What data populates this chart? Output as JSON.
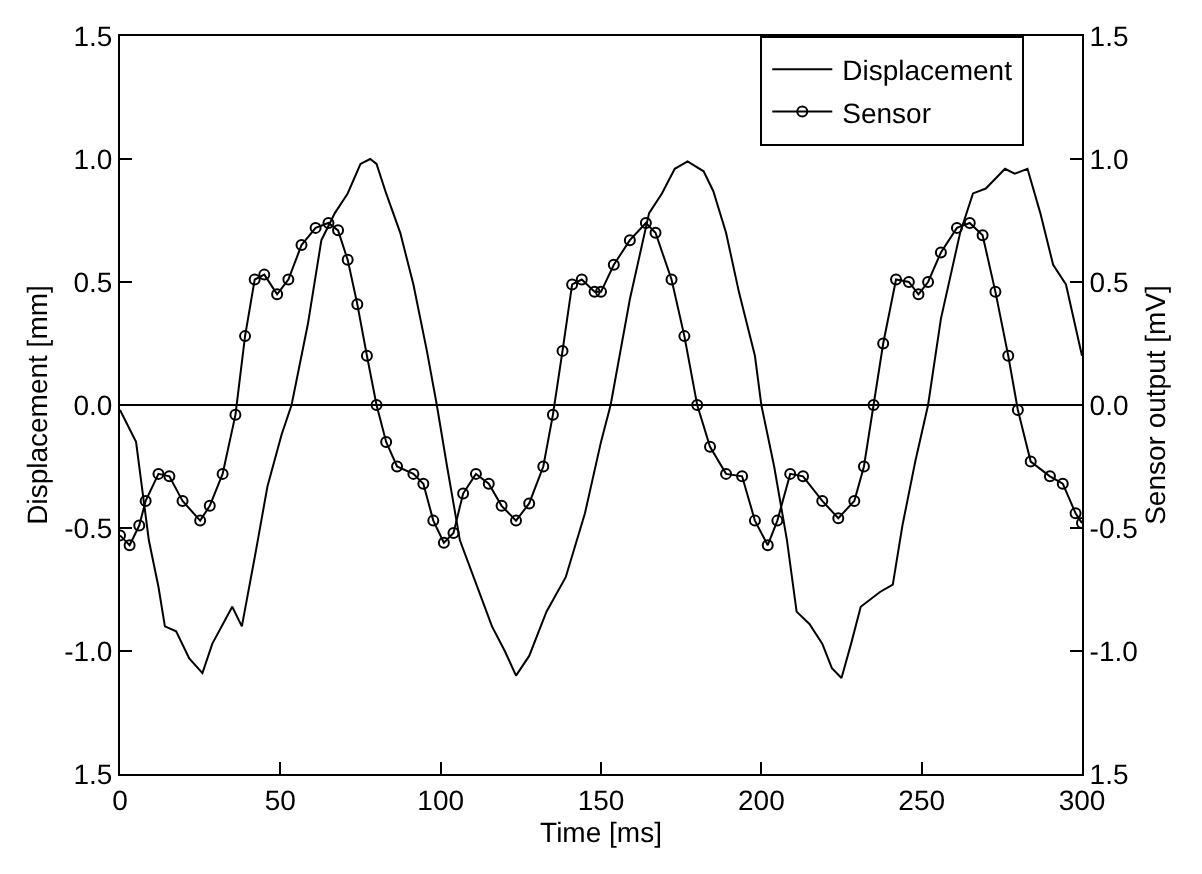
{
  "chart_data": {
    "type": "line",
    "xlabel": "Time [ms]",
    "ylabel": "Displacement [mm]",
    "y2label": "Sensor output [mV]",
    "xlim": [
      0,
      300
    ],
    "xticks": [
      0,
      50,
      100,
      150,
      200,
      250,
      300
    ],
    "ylim": [
      -1.5,
      1.5
    ],
    "yticks": [
      {
        "value": -1.5,
        "label": "1.5"
      },
      {
        "value": -1.0,
        "label": "-1.0"
      },
      {
        "value": -0.5,
        "label": "-0.5"
      },
      {
        "value": 0,
        "label": "0.0"
      },
      {
        "value": 0.5,
        "label": "0.5"
      },
      {
        "value": 1.0,
        "label": "1.0"
      },
      {
        "value": 1.5,
        "label": "1.5"
      }
    ],
    "y2lim": [
      -1.5,
      1.5
    ],
    "y2ticks": [
      {
        "value": -1.5,
        "label": "1.5"
      },
      {
        "value": -1.0,
        "label": "-1.0"
      },
      {
        "value": -0.5,
        "label": "-0.5"
      },
      {
        "value": 0,
        "label": "0.0"
      },
      {
        "value": 0.5,
        "label": "0.5"
      },
      {
        "value": 1.0,
        "label": "1.0"
      },
      {
        "value": 1.5,
        "label": "1.5"
      }
    ],
    "ref_lines": [
      {
        "axis": "y",
        "value": 0,
        "color": "#000000"
      }
    ],
    "grid": false,
    "legend": "top right",
    "series": [
      {
        "name": "Displacement",
        "color": "#000000",
        "marker": "none",
        "x": [
          0,
          5,
          9,
          12,
          14,
          17.5,
          21.6,
          25.7,
          28.8,
          35,
          38,
          42,
          46,
          50.4,
          53.5,
          58.6,
          62.8,
          67,
          71,
          75,
          78,
          80,
          83,
          87.4,
          91.5,
          95.7,
          98.8,
          102,
          106,
          112,
          116,
          120,
          123.5,
          127.6,
          133,
          139,
          145,
          150,
          153,
          159,
          165,
          169,
          173,
          177,
          182,
          185,
          189,
          193,
          198,
          200,
          204,
          208,
          211,
          215,
          219,
          222,
          225,
          228,
          231,
          237,
          241,
          244,
          248,
          252,
          256,
          262,
          266,
          270,
          276,
          279,
          283,
          287,
          291,
          295,
          300
        ],
        "values": [
          -0.02,
          -0.15,
          -0.55,
          -0.74,
          -0.9,
          -0.92,
          -1.03,
          -1.09,
          -0.97,
          -0.82,
          -0.9,
          -0.62,
          -0.33,
          -0.12,
          0,
          0.33,
          0.67,
          0.78,
          0.86,
          0.98,
          1.0,
          0.98,
          0.86,
          0.7,
          0.49,
          0.22,
          0,
          -0.25,
          -0.55,
          -0.76,
          -0.9,
          -1.0,
          -1.1,
          -1.02,
          -0.84,
          -0.7,
          -0.44,
          -0.15,
          0,
          0.43,
          0.78,
          0.86,
          0.96,
          0.99,
          0.95,
          0.87,
          0.7,
          0.46,
          0.2,
          0,
          -0.25,
          -0.55,
          -0.84,
          -0.89,
          -0.97,
          -1.07,
          -1.11,
          -0.97,
          -0.82,
          -0.76,
          -0.73,
          -0.49,
          -0.23,
          0,
          0.35,
          0.7,
          0.86,
          0.88,
          0.96,
          0.94,
          0.96,
          0.78,
          0.57,
          0.49,
          0.2
        ]
      },
      {
        "name": "Sensor",
        "color": "#000000",
        "marker": "circle",
        "axis": "y2",
        "x": [
          0,
          3,
          6,
          8,
          12,
          15.4,
          19.5,
          25,
          28,
          32,
          36,
          39,
          42,
          45,
          49,
          52.5,
          56.6,
          61,
          65,
          68,
          71,
          74,
          77,
          80,
          83,
          86.4,
          91.5,
          94.6,
          97.7,
          101,
          104,
          107,
          111,
          115,
          119,
          123.5,
          127.6,
          132,
          135,
          138,
          141,
          144,
          148,
          150,
          154,
          159,
          164,
          167,
          172,
          176,
          180,
          184,
          189,
          194,
          198,
          202,
          205,
          209,
          213,
          219,
          224,
          229,
          232,
          235,
          238,
          242,
          246,
          249,
          252,
          256,
          261,
          265,
          269,
          273,
          277,
          280,
          284,
          290,
          294,
          298,
          300
        ],
        "values": [
          -0.53,
          -0.57,
          -0.49,
          -0.39,
          -0.28,
          -0.29,
          -0.39,
          -0.47,
          -0.41,
          -0.28,
          -0.04,
          0.28,
          0.51,
          0.53,
          0.45,
          0.51,
          0.65,
          0.72,
          0.74,
          0.71,
          0.59,
          0.41,
          0.2,
          0,
          -0.15,
          -0.25,
          -0.28,
          -0.32,
          -0.47,
          -0.56,
          -0.52,
          -0.36,
          -0.28,
          -0.32,
          -0.41,
          -0.47,
          -0.4,
          -0.25,
          -0.04,
          0.22,
          0.49,
          0.51,
          0.46,
          0.46,
          0.57,
          0.67,
          0.74,
          0.7,
          0.51,
          0.28,
          0,
          -0.17,
          -0.28,
          -0.29,
          -0.47,
          -0.57,
          -0.47,
          -0.28,
          -0.29,
          -0.39,
          -0.46,
          -0.39,
          -0.25,
          0,
          0.25,
          0.51,
          0.5,
          0.45,
          0.5,
          0.62,
          0.72,
          0.74,
          0.69,
          0.46,
          0.2,
          -0.02,
          -0.23,
          -0.29,
          -0.32,
          -0.44,
          -0.48
        ]
      }
    ]
  }
}
